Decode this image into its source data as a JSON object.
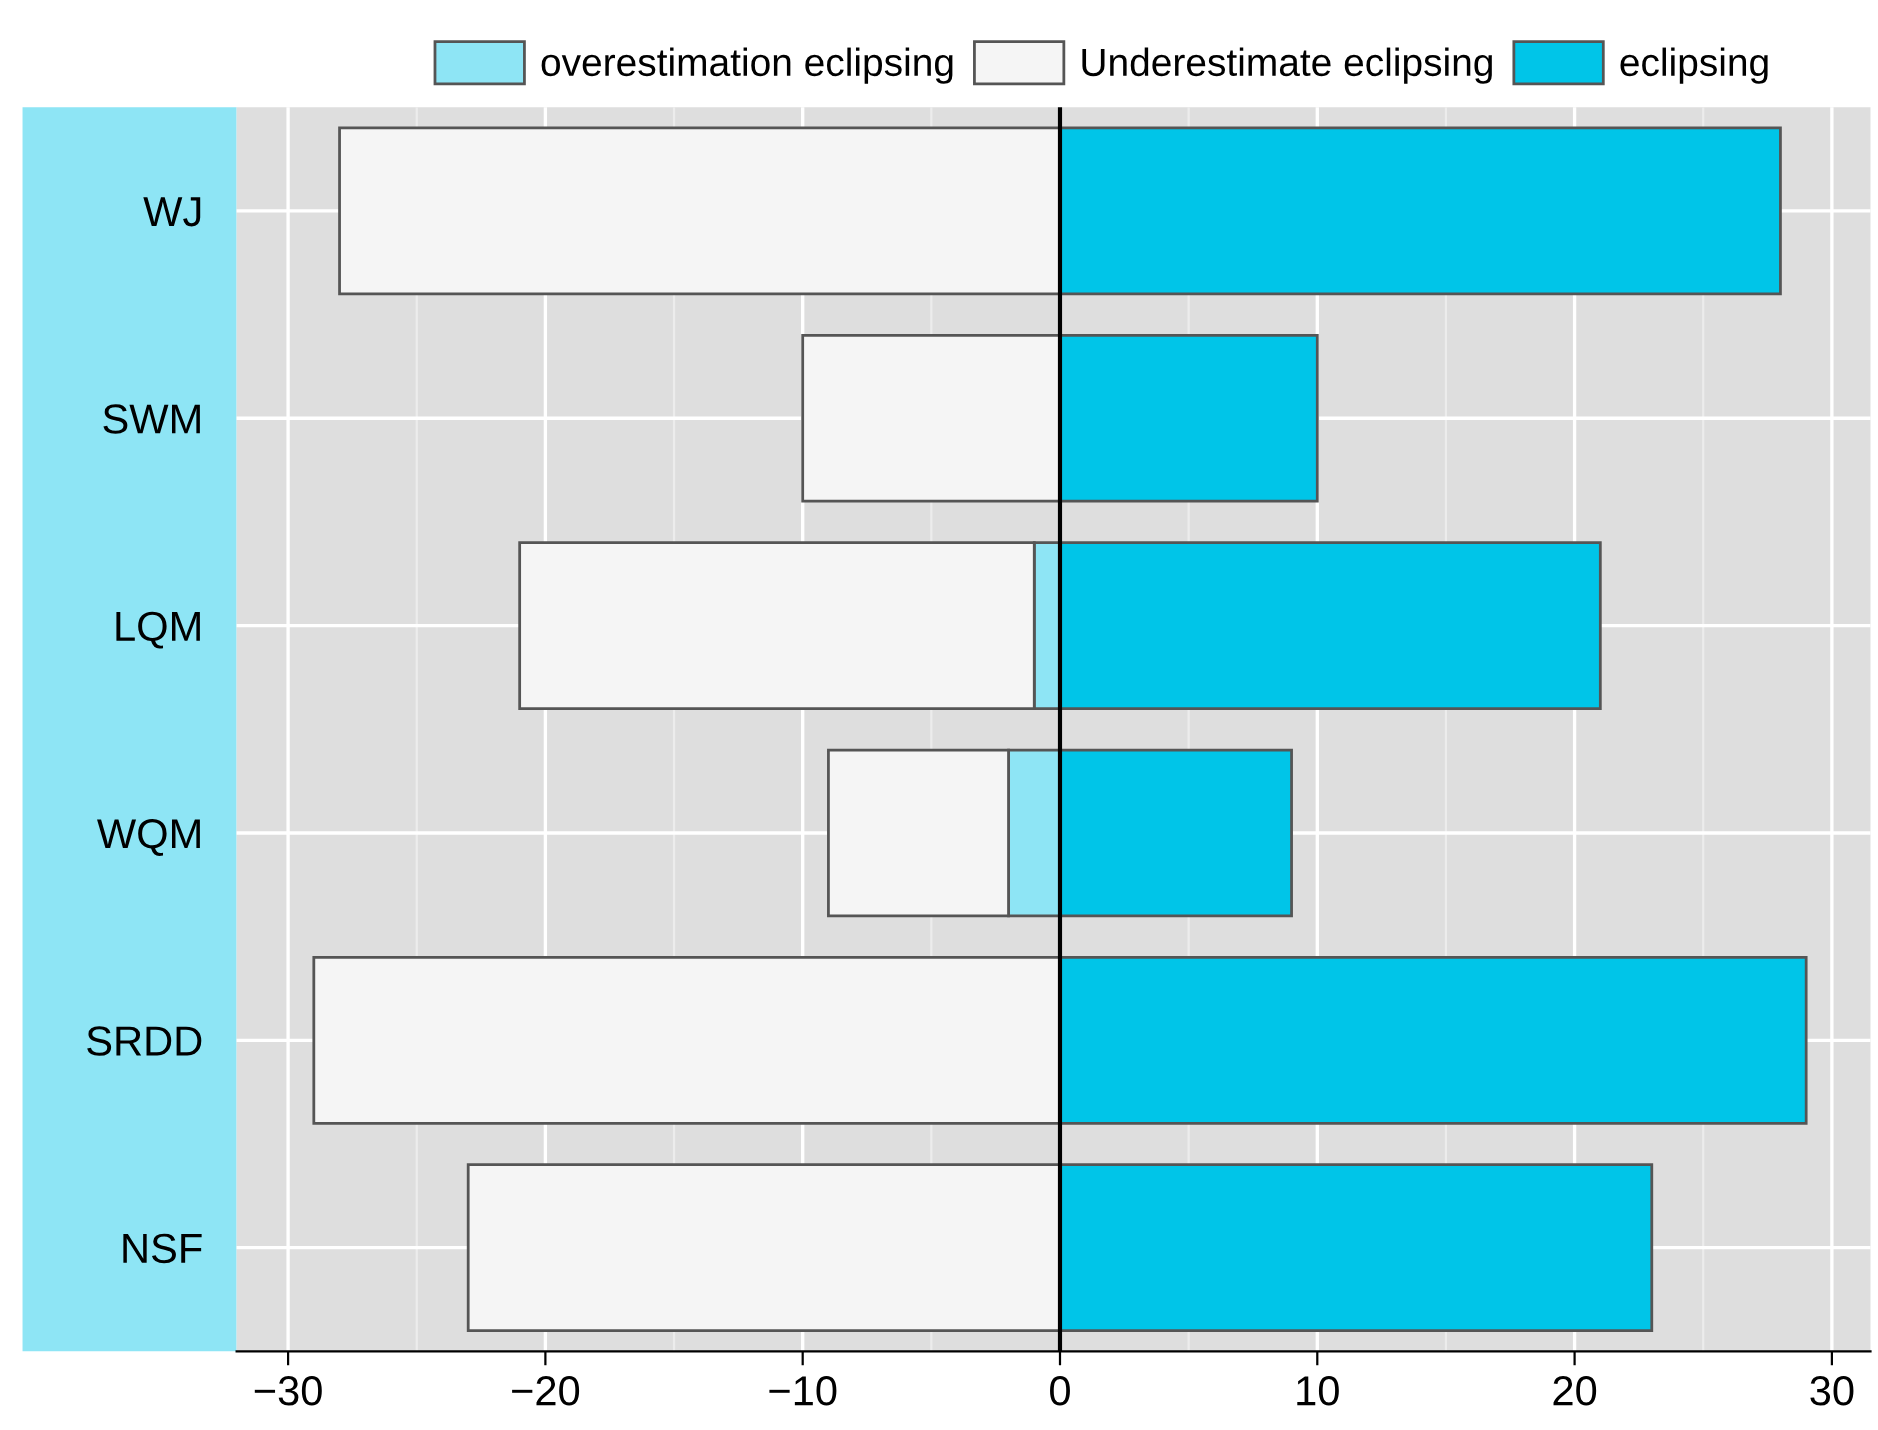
{
  "chart_data": {
    "type": "bar",
    "orientation": "horizontal",
    "categories": [
      "WJ",
      "SWM",
      "LQM",
      "WQM",
      "SRDD",
      "NSF"
    ],
    "series": [
      {
        "name": "overestimation eclipsing",
        "color": "#8ee5f5",
        "values": [
          null,
          null,
          -1,
          -2,
          null,
          null
        ]
      },
      {
        "name": "Underestimate eclipsing",
        "color": "#f5f5f5",
        "values": [
          -28,
          -10,
          -20,
          -7,
          -29,
          -23
        ]
      },
      {
        "name": "eclipsing",
        "color": "#00c5e8",
        "values": [
          28,
          10,
          21,
          9,
          29,
          23
        ]
      }
    ],
    "xlim": [
      -32,
      31.5
    ],
    "xticks": [
      {
        "value": -30,
        "label": "−30"
      },
      {
        "value": -20,
        "label": "−20"
      },
      {
        "value": -10,
        "label": "−10"
      },
      0,
      10,
      20,
      30
    ],
    "ref_lines": [
      {
        "axis": "x",
        "value": 0,
        "color": "#000000"
      }
    ],
    "stacked": true,
    "grid": true,
    "legend": "top"
  }
}
